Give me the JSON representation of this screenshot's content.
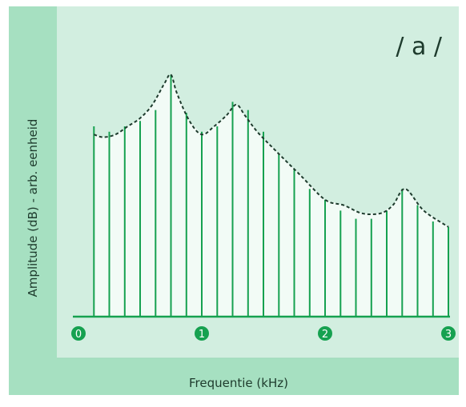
{
  "chart_data": {
    "type": "line",
    "title": "/ a /",
    "xlabel": "Frequentie (kHz)",
    "ylabel": "Amplitude (dB) - arb. eenheid",
    "xlim": [
      0,
      3
    ],
    "ylim": [
      0,
      1
    ],
    "x_ticks": [
      "0",
      "1",
      "2",
      "3"
    ],
    "harmonics": {
      "x": [
        0.125,
        0.25,
        0.375,
        0.5,
        0.625,
        0.75,
        0.875,
        1.0,
        1.125,
        1.25,
        1.375,
        1.5,
        1.625,
        1.75,
        1.875,
        2.0,
        2.125,
        2.25,
        2.375,
        2.5,
        2.625,
        2.75,
        2.875,
        3.0
      ],
      "values": [
        0.7,
        0.68,
        0.7,
        0.72,
        0.76,
        0.89,
        0.75,
        0.68,
        0.7,
        0.79,
        0.76,
        0.68,
        0.6,
        0.54,
        0.47,
        0.43,
        0.39,
        0.36,
        0.36,
        0.39,
        0.47,
        0.41,
        0.35,
        0.33
      ]
    },
    "envelope": {
      "x": [
        0.125,
        0.2,
        0.3,
        0.4,
        0.5,
        0.6,
        0.7,
        0.75,
        0.8,
        0.9,
        1.0,
        1.1,
        1.2,
        1.28,
        1.35,
        1.45,
        1.6,
        1.8,
        2.0,
        2.15,
        2.3,
        2.45,
        2.55,
        2.65,
        2.8,
        3.0
      ],
      "values": [
        0.67,
        0.66,
        0.67,
        0.7,
        0.73,
        0.78,
        0.86,
        0.89,
        0.82,
        0.72,
        0.67,
        0.7,
        0.74,
        0.78,
        0.74,
        0.68,
        0.61,
        0.52,
        0.43,
        0.41,
        0.38,
        0.38,
        0.41,
        0.47,
        0.39,
        0.33
      ]
    },
    "colors": {
      "plot_background": "#d2eee0",
      "frame_background": "#a6e0c1",
      "line": "#16a150",
      "fill": "#f2fbf6",
      "envelope": "#1e3b2d",
      "text": "#1e3b2d"
    }
  }
}
